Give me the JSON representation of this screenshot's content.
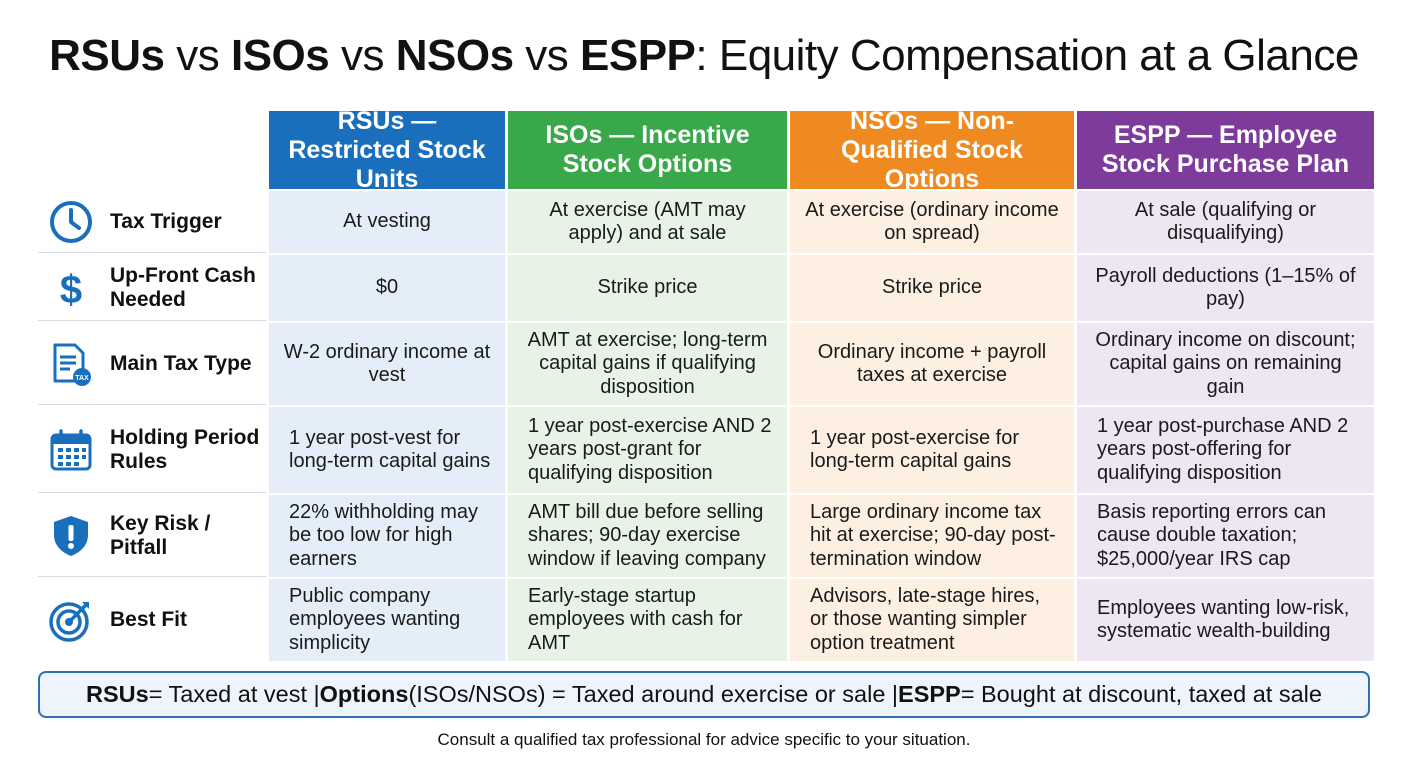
{
  "title": {
    "p1": "RSUs",
    "p2": " vs ",
    "p3": "ISOs",
    "p4": " vs ",
    "p5": "NSOs",
    "p6": " vs ",
    "p7": "ESPP",
    "p8": ": Equity Compensation at a Glance"
  },
  "columns": [
    {
      "label": "RSUs — Restricted Stock Units",
      "color": "#1a6fbd"
    },
    {
      "label": "ISOs — Incentive Stock Options",
      "color": "#38a84a"
    },
    {
      "label": "NSOs — Non-Qualified Stock Options",
      "color": "#ef8a21"
    },
    {
      "label": "ESPP — Employee Stock Purchase Plan",
      "color": "#7d3b9c"
    }
  ],
  "rows": [
    {
      "label": "Tax Trigger",
      "icon": "clock-icon",
      "cells": [
        "At vesting",
        "At exercise (AMT may apply) and at sale",
        "At exercise (ordinary income on spread)",
        "At sale (qualifying or disqualifying)"
      ]
    },
    {
      "label": "Up-Front Cash Needed",
      "icon": "dollar-icon",
      "cells": [
        "$0",
        "Strike price",
        "Strike price",
        "Payroll deductions (1–15% of pay)"
      ]
    },
    {
      "label": "Main Tax Type",
      "icon": "tax-document-icon",
      "cells": [
        "W-2 ordinary income at vest",
        "AMT at exercise; long-term capital gains if qualifying disposition",
        "Ordinary income + payroll taxes at exercise",
        "Ordinary income on discount; capital gains on remaining gain"
      ]
    },
    {
      "label": "Holding Period Rules",
      "icon": "calendar-icon",
      "cells": [
        "1 year post-vest for long-term capital gains",
        "1 year post-exercise AND 2 years post-grant for qualifying disposition",
        "1 year post-exercise for long-term capital gains",
        "1 year post-purchase AND 2 years post-offering for qualifying disposition"
      ]
    },
    {
      "label": "Key Risk / Pitfall",
      "icon": "shield-warning-icon",
      "cells": [
        "22% withholding may be too low for high earners",
        "AMT bill due before selling shares; 90-day exercise window if leaving company",
        "Large ordinary income tax hit at exercise; 90-day post-termination window",
        "Basis reporting errors can cause double taxation; $25,000/year IRS cap"
      ]
    },
    {
      "label": "Best Fit",
      "icon": "target-icon",
      "cells": [
        "Public company employees wanting simplicity",
        "Early-stage startup employees with cash for AMT",
        "Advisors, late-stage hires, or those wanting simpler option treatment",
        "Employees wanting low-risk, systematic wealth-building"
      ]
    }
  ],
  "summary": {
    "s1": "RSUs",
    "s2": " = Taxed at vest | ",
    "s3": "Options",
    "s4": " (ISOs/NSOs) = Taxed around exercise or sale | ",
    "s5": "ESPP",
    "s6": " = Bought at discount, taxed at sale"
  },
  "footnote": "Consult a qualified tax professional for advice specific to your situation.",
  "tax_icon_text": "TAX"
}
